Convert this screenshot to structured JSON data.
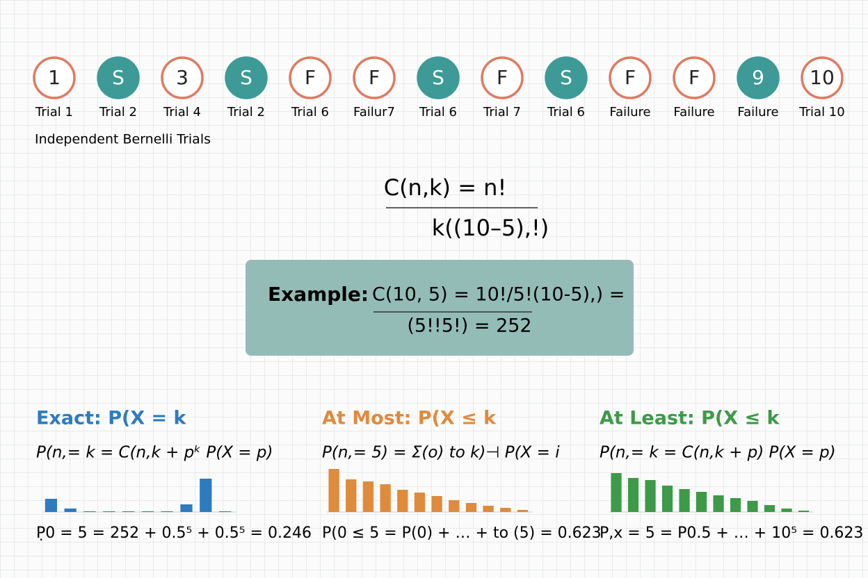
{
  "trials": [
    {
      "symbol": "1",
      "caption": "Trial 1",
      "filled": false
    },
    {
      "symbol": "S",
      "caption": "Trial 2",
      "filled": true
    },
    {
      "symbol": "3",
      "caption": "Trial 4",
      "filled": false
    },
    {
      "symbol": "S",
      "caption": "Trial 2",
      "filled": true
    },
    {
      "symbol": "F",
      "caption": "Trial 6",
      "filled": false
    },
    {
      "symbol": "F",
      "caption": "Failur7",
      "filled": false
    },
    {
      "symbol": "S",
      "caption": "Trial 6",
      "filled": true
    },
    {
      "symbol": "F",
      "caption": "Trial 7",
      "filled": false
    },
    {
      "symbol": "S",
      "caption": "Trial 6",
      "filled": true
    },
    {
      "symbol": "F",
      "caption": "Failure",
      "filled": false
    },
    {
      "symbol": "F",
      "caption": "Failure",
      "filled": false
    },
    {
      "symbol": "9",
      "caption": "Failure",
      "filled": true
    },
    {
      "symbol": "10",
      "caption": "Trial 10",
      "filled": false
    }
  ],
  "trials_label": "Independent Bernelli Trials",
  "formula": {
    "numerator": "C(n,k) = n!",
    "denominator": "k((10–5),!)"
  },
  "example": {
    "label": "Example:",
    "line1": "C(10, 5) = 10!/5!(10-5),) =",
    "line2": "(5!!5!) = 252"
  },
  "panels": [
    {
      "title": "Exact: P(X = k",
      "formula": "P(n,= k = C(n,k + pᵏ   P(X = p)",
      "result": "P̣0 = 5 = 252 + 0.5⁵ + 0.5⁵ = 0.246",
      "color": "#2e7bbf",
      "ylim": [
        0,
        65
      ],
      "values": [
        19,
        5,
        1,
        1,
        1,
        1,
        1,
        11,
        48,
        1
      ]
    },
    {
      "title": "At Most: P(X ≤ k",
      "formula": "P(n,= 5) = Σ(o) to k)⊣ P(X = i",
      "result": "P(0 ≤ 5 = P(0) + … + to (5) = 0.623",
      "color": "#e08a3c",
      "ylim": [
        0,
        65
      ],
      "values": [
        62,
        47,
        44,
        40,
        32,
        28,
        23,
        17,
        13,
        9,
        6,
        3
      ]
    },
    {
      "title": "At Least: P(X ≤ k",
      "formula": "P(n,= k = C(n,k + p)  P(X = p)",
      "result": "P,x = 5 = P0.5 + … + 10⁵ = 0.623",
      "color": "#3d9a48",
      "ylim": [
        0,
        65
      ],
      "values": [
        56,
        49,
        46,
        38,
        33,
        29,
        24,
        20,
        16,
        10,
        5,
        2
      ]
    }
  ]
}
